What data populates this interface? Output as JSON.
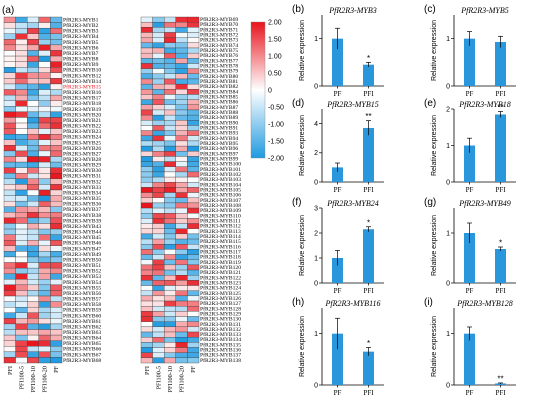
{
  "panel_a": {
    "label": "(a)",
    "columns": [
      "PFI",
      "PFI100-5",
      "PFI100-10",
      "PFI100-20",
      "PF"
    ],
    "genes_left": [
      "PfR2R3-MYB1",
      "PfR2R3-MYB2",
      "PfR2R3-MYB3",
      "PfR2R3-MYB4",
      "PfR2R3-MYB5",
      "PfR2R3-MYB6",
      "PfR2R3-MYB7",
      "PfR2R3-MYB8",
      "PfR2R3-MYB9",
      "PfR2R3-MYB10",
      "PfR2R3-MYB12",
      "PfR2R3-MYB14",
      "PfR2R3-MYB15",
      "PfR2R3-MYB16",
      "PfR2R3-MYB17",
      "PfR2R3-MYB18",
      "PfR2R3-MYB19",
      "PfR2R3-MYB20",
      "PfR2R3-MYB21",
      "PfR2R3-MYB22",
      "PfR2R3-MYB23",
      "PfR2R3-MYB24",
      "PfR2R3-MYB25",
      "PfR2R3-MYB26",
      "PfR2R3-MYB27",
      "PfR2R3-MYB28",
      "PfR2R3-MYB29",
      "PfR2R3-MYB30",
      "PfR2R3-MYB31",
      "PfR2R3-MYB32",
      "PfR2R3-MYB33",
      "PfR2R3-MYB34",
      "PfR2R3-MYB35",
      "PfR2R3-MYB36",
      "PfR2R3-MYB37",
      "PfR2R3-MYB38",
      "PfR2R3-MYB39",
      "PfR2R3-MYB43",
      "PfR2R3-MYB44",
      "PfR2R3-MYB45",
      "PfR2R3-MYB46",
      "PfR2R3-MYB47",
      "PfR2R3-MYB49",
      "PfR2R3-MYB50",
      "PfR2R3-MYB51",
      "PfR2R3-MYB52",
      "PfR2R3-MYB53",
      "PfR2R3-MYB54",
      "PfR2R3-MYB55",
      "PfR2R3-MYB56",
      "PfR2R3-MYB57",
      "PfR2R3-MYB58",
      "PfR2R3-MYB59",
      "PfR2R3-MYB60",
      "PfR2R3-MYB61",
      "PfR2R3-MYB62",
      "PfR2R3-MYB63",
      "PfR2R3-MYB64",
      "PfR2R3-MYB65",
      "PfR2R3-MYB66",
      "PfR2R3-MYB67",
      "PfR2R3-MYB68"
    ],
    "genes_right": [
      "PfR2R3-MYB69",
      "PfR2R3-MYB70",
      "PfR2R3-MYB71",
      "PfR2R3-MYB72",
      "PfR2R3-MYB73",
      "PfR2R3-MYB74",
      "PfR2R3-MYB75",
      "PfR2R3-MYB76",
      "PfR2R3-MYB77",
      "PfR2R3-MYB78",
      "PfR2R3-MYB79",
      "PfR2R3-MYB80",
      "PfR2R3-MYB81",
      "PfR2R3-MYB82",
      "PfR2R3-MYB84",
      "PfR2R3-MYB85",
      "PfR2R3-MYB86",
      "PfR2R3-MYB87",
      "PfR2R3-MYB88",
      "PfR2R3-MYB89",
      "PfR2R3-MYB90",
      "PfR2R3-MYB91",
      "PfR2R3-MYB93",
      "PfR2R3-MYB94",
      "PfR2R3-MYB95",
      "PfR2R3-MYB96",
      "PfR2R3-MYB97",
      "PfR2R3-MYB99",
      "PfR2R3-MYB100",
      "PfR2R3-MYB101",
      "PfR2R3-MYB102",
      "PfR2R3-MYB103",
      "PfR2R3-MYB104",
      "PfR2R3-MYB105",
      "PfR2R3-MYB106",
      "PfR2R3-MYB107",
      "PfR2R3-MYB108",
      "PfR2R3-MYB109",
      "PfR2R3-MYB110",
      "PfR2R3-MYB111",
      "PfR2R3-MYB112",
      "PfR2R3-MYB113",
      "PfR2R3-MYB114",
      "PfR2R3-MYB115",
      "PfR2R3-MYB116",
      "PfR2R3-MYB117",
      "PfR2R3-MYB118",
      "PfR2R3-MYB119",
      "PfR2R3-MYB120",
      "PfR2R3-MYB121",
      "PfR2R3-MYB122",
      "PfR2R3-MYB123",
      "PfR2R3-MYB124",
      "PfR2R3-MYB125",
      "PfR2R3-MYB126",
      "PfR2R3-MYB127",
      "PfR2R3-MYB128",
      "PfR2R3-MYB129",
      "PfR2R3-MYB130",
      "PfR2R3-MYB131",
      "PfR2R3-MYB132",
      "PfR2R3-MYB133",
      "PfR2R3-MYB134",
      "PfR2R3-MYB135",
      "PfR2R3-MYB136",
      "PfR2R3-MYB137",
      "PfR2R3-MYB138"
    ],
    "highlighted_gene": "PfR2R3-MYB15",
    "highlight_color": "#e8141c",
    "color_scale": {
      "ticks": [
        "2.00",
        "1.50",
        "1.00",
        "0.50",
        "0",
        "-0.50",
        "-1.00",
        "-1.50",
        "-2.00"
      ],
      "max_color": "#e8141c",
      "mid_color": "#ffffff",
      "min_color": "#1f9ae0"
    }
  },
  "chart_data": [
    {
      "panel": "(b)",
      "type": "bar",
      "title": "PfR2R3-MYB3",
      "categories": [
        "PF",
        "PFI"
      ],
      "values": [
        1.0,
        0.45
      ],
      "errors": [
        0.22,
        0.05
      ],
      "significance": [
        "",
        "*"
      ],
      "ylabel": "Relative expression",
      "ylim": [
        0,
        1.5
      ],
      "yticks": [
        "0",
        "1"
      ]
    },
    {
      "panel": "(c)",
      "type": "bar",
      "title": "PfR2R3-MYB5",
      "categories": [
        "PF",
        "PFI"
      ],
      "values": [
        1.0,
        0.93
      ],
      "errors": [
        0.15,
        0.12
      ],
      "significance": [
        "",
        ""
      ],
      "ylabel": "Relative expression",
      "ylim": [
        0,
        1.5
      ],
      "yticks": [
        "0",
        "1"
      ]
    },
    {
      "panel": "(d)",
      "type": "bar",
      "title": "PfR2R3-MYB15",
      "categories": [
        "PF",
        "PFI"
      ],
      "values": [
        1.0,
        3.7
      ],
      "errors": [
        0.3,
        0.5
      ],
      "significance": [
        "",
        "**"
      ],
      "ylabel": "Relative expression",
      "ylim": [
        0,
        5
      ],
      "yticks": [
        "0",
        "2",
        "4"
      ]
    },
    {
      "panel": "(e)",
      "type": "bar",
      "title": "PfR2R3-MYB18",
      "categories": [
        "PF",
        "PFI"
      ],
      "values": [
        1.0,
        1.85
      ],
      "errors": [
        0.2,
        0.08
      ],
      "significance": [
        "",
        "**"
      ],
      "ylabel": "Relative expression",
      "ylim": [
        0,
        2
      ],
      "yticks": [
        "0",
        "1",
        "2"
      ]
    },
    {
      "panel": "(f)",
      "type": "bar",
      "title": "PfR2R3-MYB24",
      "categories": [
        "PF",
        "PFI"
      ],
      "values": [
        1.0,
        2.15
      ],
      "errors": [
        0.3,
        0.1
      ],
      "significance": [
        "",
        "*"
      ],
      "ylabel": "Relative expression",
      "ylim": [
        0,
        3
      ],
      "yticks": [
        "0",
        "1",
        "2",
        "3"
      ]
    },
    {
      "panel": "(g)",
      "type": "bar",
      "title": "PfR2R3-MYB49",
      "categories": [
        "PF",
        "PFI"
      ],
      "values": [
        1.0,
        0.68
      ],
      "errors": [
        0.2,
        0.04
      ],
      "significance": [
        "",
        "*"
      ],
      "ylabel": "Relative expression",
      "ylim": [
        0,
        1.5
      ],
      "yticks": [
        "0",
        "1"
      ]
    },
    {
      "panel": "(h)",
      "type": "bar",
      "title": "PfR2R3-MYB116",
      "categories": [
        "PF",
        "PFI"
      ],
      "values": [
        1.0,
        0.65
      ],
      "errors": [
        0.3,
        0.08
      ],
      "significance": [
        "",
        "*"
      ],
      "ylabel": "Relative expression",
      "ylim": [
        0,
        1.5
      ],
      "yticks": [
        "0",
        "1"
      ]
    },
    {
      "panel": "(i)",
      "type": "bar",
      "title": "PfR2R3-MYB128",
      "categories": [
        "PF",
        "PFI"
      ],
      "values": [
        1.0,
        0.03
      ],
      "errors": [
        0.13,
        0.01
      ],
      "significance": [
        "",
        "**"
      ],
      "ylabel": "Relative expression",
      "ylim": [
        0,
        1.5
      ],
      "yticks": [
        "0",
        "1"
      ]
    }
  ],
  "bar_color": "#2a96dc"
}
